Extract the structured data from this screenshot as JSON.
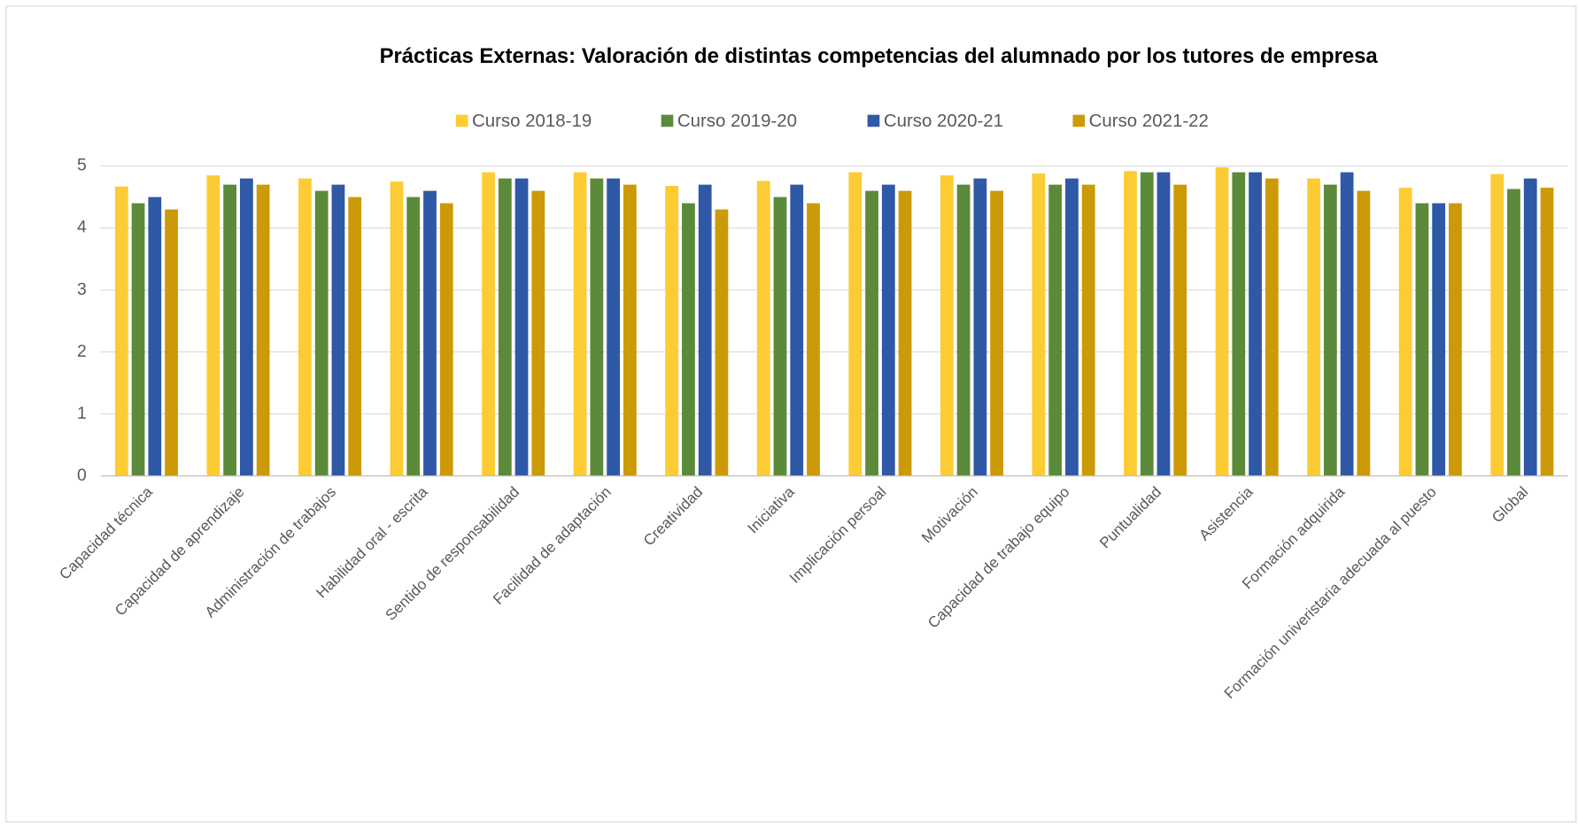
{
  "chart_data": {
    "type": "bar",
    "title": "Prácticas Externas: Valoración de distintas competencias del alumnado por los tutores de empresa",
    "categories": [
      "Capacidad técnica",
      "Capacidad de aprendizaje",
      "Administración de trabajos",
      "Habilidad oral - escrita",
      "Sentido de responsabilidad",
      "Facilidad de adaptación",
      "Creatividad",
      "Iniciativa",
      "Implicación persoal",
      "Motivación",
      "Capacidad de trabajo equipo",
      "Puntualidad",
      "Asistencia",
      "Formación adquirida",
      "Formación univeristaria adecuada al puesto",
      "Global"
    ],
    "series": [
      {
        "name": "Curso 2018-19",
        "color": "#FDCB34",
        "values": [
          4.67,
          4.85,
          4.8,
          4.75,
          4.9,
          4.9,
          4.68,
          4.76,
          4.9,
          4.85,
          4.88,
          4.92,
          4.98,
          4.8,
          4.65,
          4.87
        ]
      },
      {
        "name": "Curso 2019-20",
        "color": "#5B8A3A",
        "values": [
          4.4,
          4.7,
          4.6,
          4.5,
          4.8,
          4.8,
          4.4,
          4.5,
          4.6,
          4.7,
          4.7,
          4.9,
          4.9,
          4.7,
          4.4,
          4.63
        ]
      },
      {
        "name": "Curso 2020-21",
        "color": "#2F58A6",
        "values": [
          4.5,
          4.8,
          4.7,
          4.6,
          4.8,
          4.8,
          4.7,
          4.7,
          4.7,
          4.8,
          4.8,
          4.9,
          4.9,
          4.9,
          4.4,
          4.8
        ]
      },
      {
        "name": "Curso 2021-22",
        "color": "#CC9A06",
        "values": [
          4.3,
          4.7,
          4.5,
          4.4,
          4.6,
          4.7,
          4.3,
          4.4,
          4.6,
          4.6,
          4.7,
          4.7,
          4.8,
          4.6,
          4.4,
          4.65
        ]
      }
    ],
    "ylim": [
      0,
      5
    ],
    "yticks": [
      0,
      1,
      2,
      3,
      4,
      5
    ],
    "grid": true,
    "legend": "top"
  }
}
